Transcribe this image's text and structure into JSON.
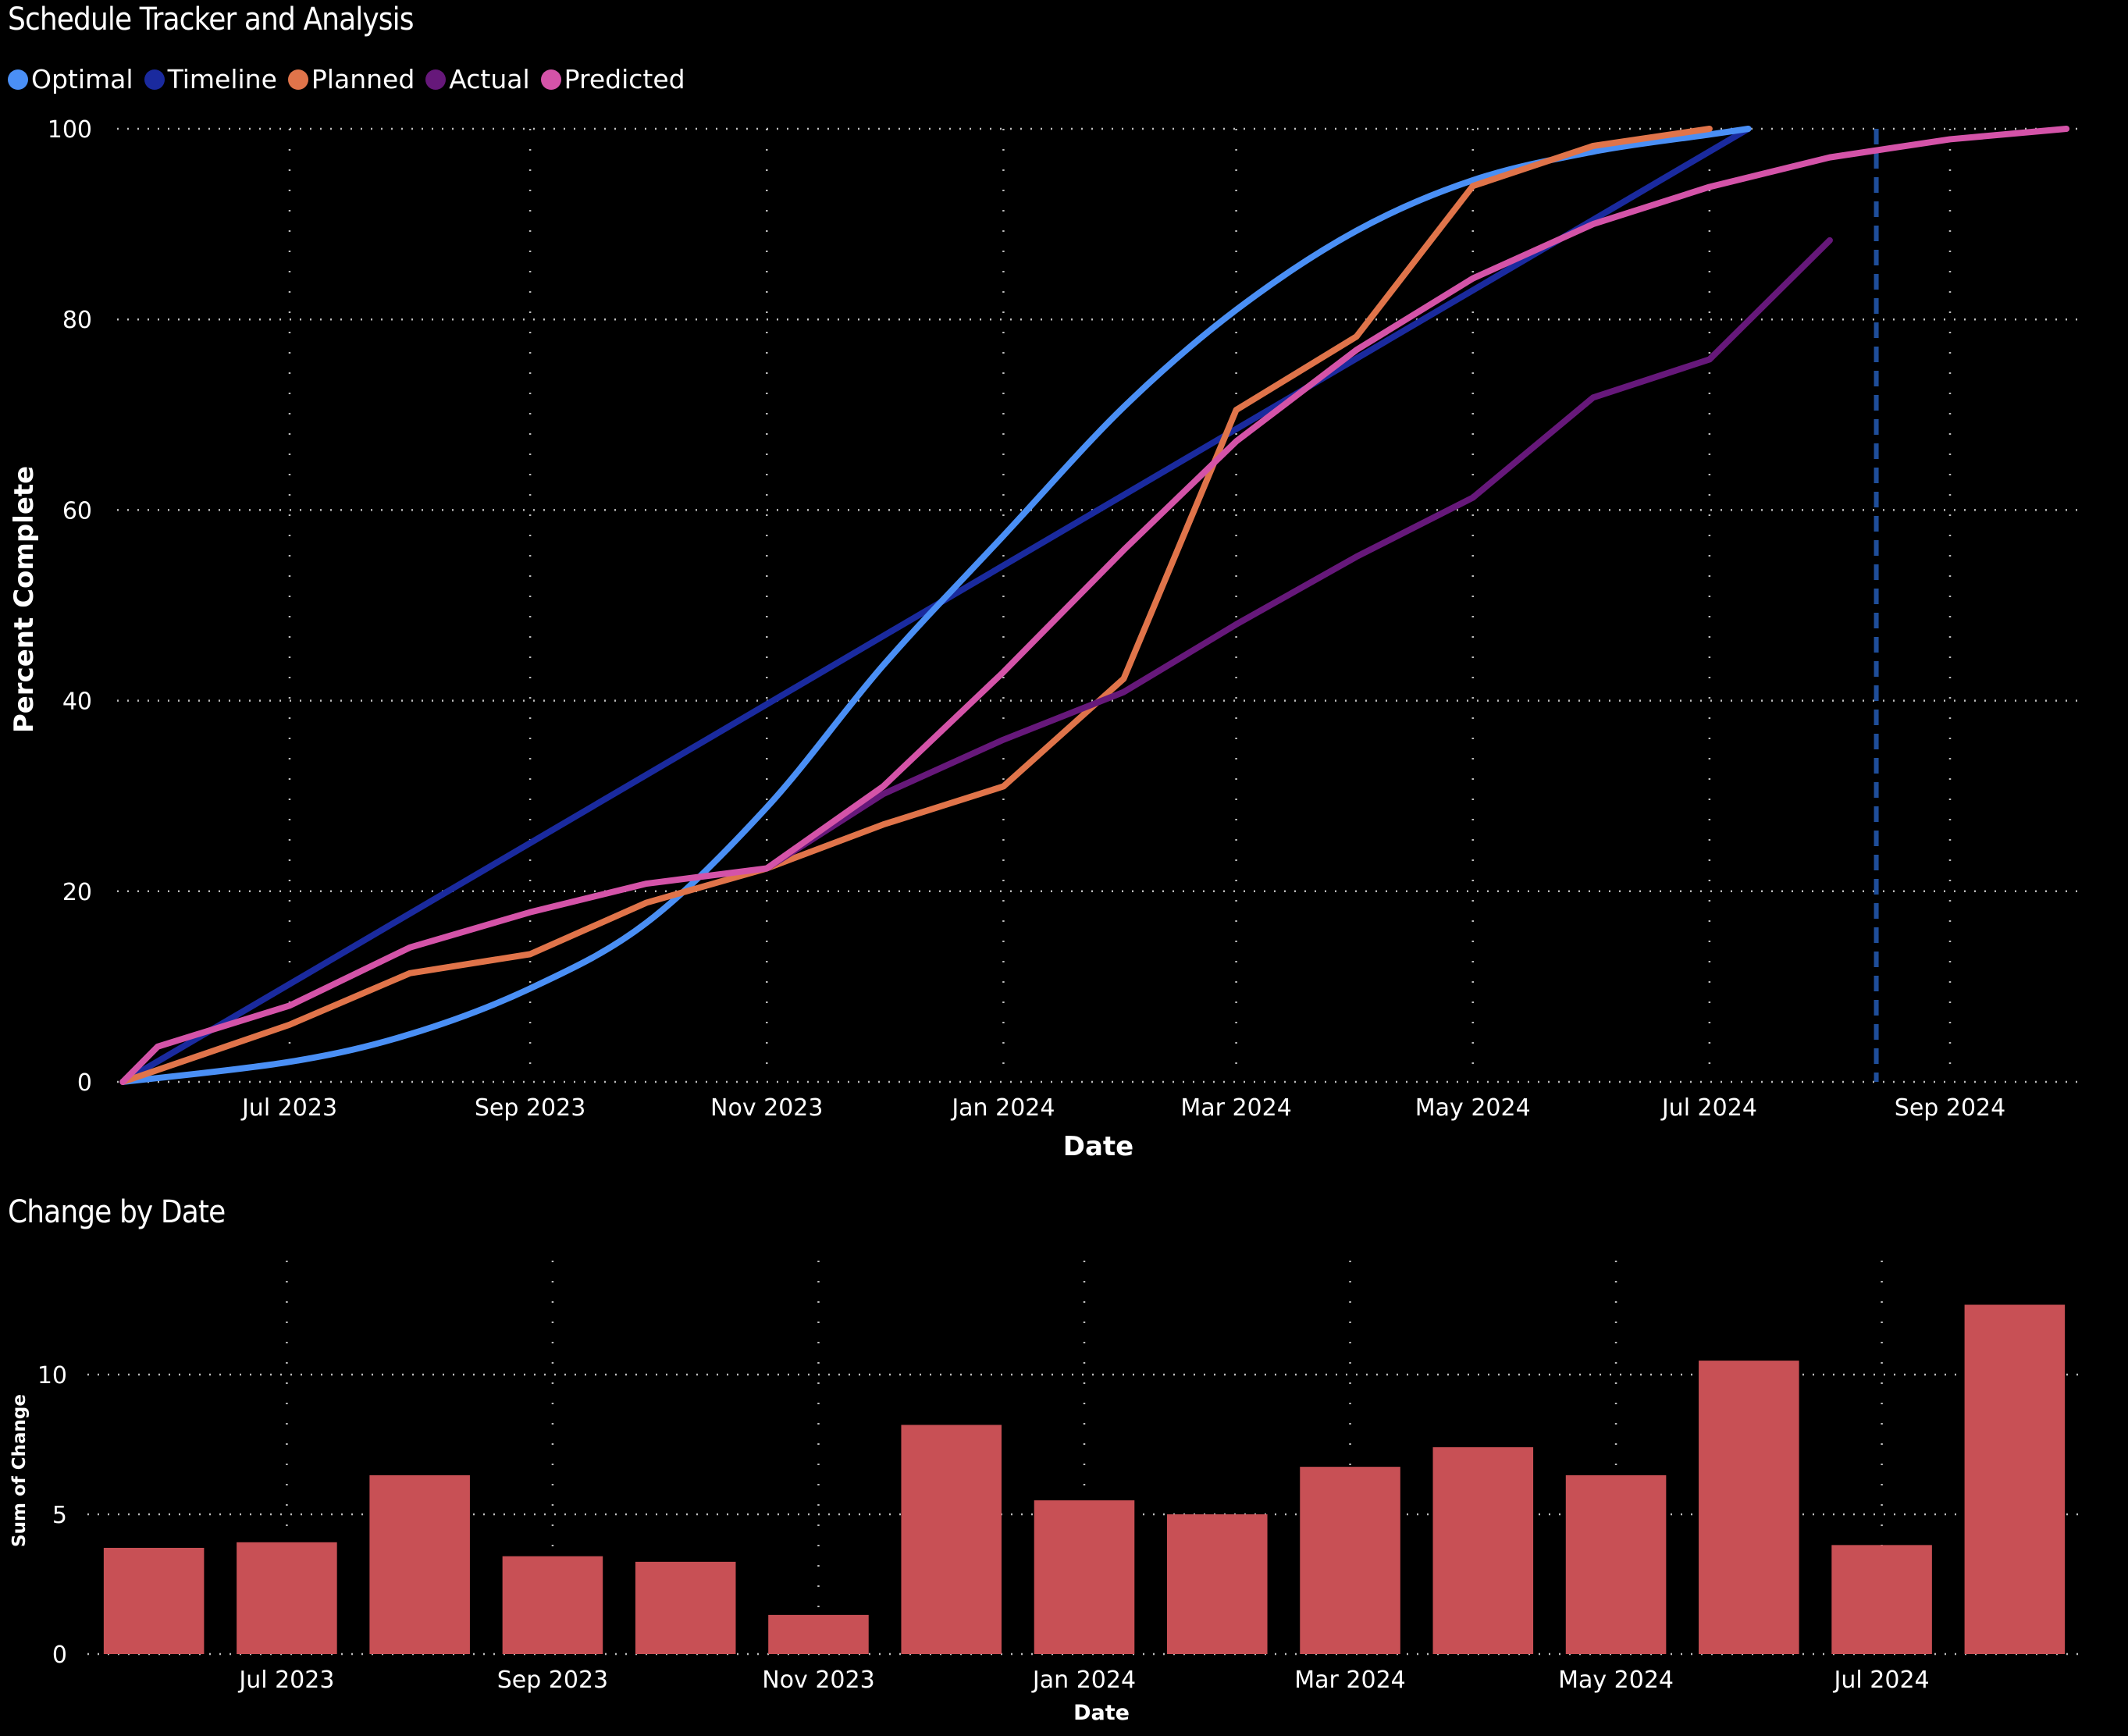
{
  "charts": {
    "tracker": {
      "title": "Schedule Tracker and Analysis",
      "xlabel": "Date",
      "ylabel": "Percent Complete"
    },
    "change": {
      "title": "Change by Date",
      "xlabel": "Date",
      "ylabel": "Sum of Change"
    }
  },
  "chart_data": [
    {
      "type": "line",
      "title": "Schedule Tracker and Analysis",
      "xlabel": "Date",
      "ylabel": "Percent Complete",
      "xlim": [
        "2023-05-19",
        "2024-10-05"
      ],
      "ylim": [
        0,
        100
      ],
      "yticks": [
        0,
        20,
        40,
        60,
        80,
        100
      ],
      "xticks": [
        {
          "date": "2023-07-01",
          "label": "Jul 2023"
        },
        {
          "date": "2023-09-01",
          "label": "Sep 2023"
        },
        {
          "date": "2023-11-01",
          "label": "Nov 2023"
        },
        {
          "date": "2024-01-01",
          "label": "Jan 2024"
        },
        {
          "date": "2024-03-01",
          "label": "Mar 2024"
        },
        {
          "date": "2024-05-01",
          "label": "May 2024"
        },
        {
          "date": "2024-07-01",
          "label": "Jul 2024"
        },
        {
          "date": "2024-09-01",
          "label": "Sep 2024"
        }
      ],
      "grid": true,
      "legend_position": "top-left",
      "reference_line": {
        "date": "2024-08-13",
        "style": "dashed",
        "color": "#1F4E9A"
      },
      "series": [
        {
          "name": "Optimal",
          "color": "#4A8FF5",
          "smooth": true,
          "points": [
            [
              "2023-05-19",
              0
            ],
            [
              "2023-07-01",
              2.1
            ],
            [
              "2023-08-01",
              5.0
            ],
            [
              "2023-09-01",
              9.8
            ],
            [
              "2023-10-01",
              16.7
            ],
            [
              "2023-11-01",
              28.8
            ],
            [
              "2023-12-01",
              43.7
            ],
            [
              "2024-01-01",
              57.3
            ],
            [
              "2024-02-01",
              70.8
            ],
            [
              "2024-03-01",
              81.0
            ],
            [
              "2024-04-01",
              89.3
            ],
            [
              "2024-05-01",
              94.6
            ],
            [
              "2024-06-01",
              97.6
            ],
            [
              "2024-07-01",
              99.4
            ],
            [
              "2024-07-11",
              100
            ]
          ]
        },
        {
          "name": "Timeline",
          "color": "#1A2A9E",
          "smooth": false,
          "points": [
            [
              "2023-05-19",
              0
            ],
            [
              "2024-07-11",
              100
            ]
          ]
        },
        {
          "name": "Planned",
          "color": "#E0744A",
          "smooth": false,
          "points": [
            [
              "2023-05-19",
              0
            ],
            [
              "2023-07-01",
              6.0
            ],
            [
              "2023-08-01",
              11.4
            ],
            [
              "2023-09-01",
              13.4
            ],
            [
              "2023-10-01",
              18.8
            ],
            [
              "2023-11-01",
              22.4
            ],
            [
              "2023-12-01",
              27.0
            ],
            [
              "2024-01-01",
              31.0
            ],
            [
              "2024-02-01",
              42.3
            ],
            [
              "2024-03-01",
              70.5
            ],
            [
              "2024-04-01",
              78.2
            ],
            [
              "2024-05-01",
              94.0
            ],
            [
              "2024-06-01",
              98.2
            ],
            [
              "2024-07-01",
              100
            ]
          ]
        },
        {
          "name": "Actual",
          "color": "#66187A",
          "smooth": false,
          "points": [
            [
              "2023-11-01",
              22.4
            ],
            [
              "2023-12-01",
              30.2
            ],
            [
              "2024-01-01",
              35.9
            ],
            [
              "2024-02-01",
              40.9
            ],
            [
              "2024-03-01",
              48.0
            ],
            [
              "2024-04-01",
              55.1
            ],
            [
              "2024-05-01",
              61.3
            ],
            [
              "2024-06-01",
              71.8
            ],
            [
              "2024-07-01",
              75.8
            ],
            [
              "2024-08-01",
              88.3
            ]
          ]
        },
        {
          "name": "Predicted",
          "color": "#D453A8",
          "smooth": false,
          "points": [
            [
              "2023-05-19",
              0
            ],
            [
              "2023-05-28",
              3.7
            ],
            [
              "2023-07-01",
              8.0
            ],
            [
              "2023-08-01",
              14.1
            ],
            [
              "2023-09-01",
              17.8
            ],
            [
              "2023-10-01",
              20.8
            ],
            [
              "2023-11-01",
              22.4
            ],
            [
              "2023-12-01",
              31.0
            ],
            [
              "2024-01-01",
              43.0
            ],
            [
              "2024-02-01",
              55.8
            ],
            [
              "2024-03-01",
              67.2
            ],
            [
              "2024-04-01",
              76.8
            ],
            [
              "2024-05-01",
              84.3
            ],
            [
              "2024-06-01",
              90.0
            ],
            [
              "2024-07-01",
              93.9
            ],
            [
              "2024-08-01",
              97.0
            ],
            [
              "2024-09-01",
              98.9
            ],
            [
              "2024-10-01",
              100
            ]
          ]
        }
      ]
    },
    {
      "type": "bar",
      "title": "Change by Date",
      "xlabel": "Date",
      "ylabel": "Sum of Change",
      "ylim": [
        0,
        13.5
      ],
      "yticks": [
        0,
        5,
        10
      ],
      "grid": true,
      "color": "#C85055",
      "categories": [
        "Jun 2023",
        "Jul 2023",
        "Aug 2023",
        "Sep 2023",
        "Oct 2023",
        "Nov 2023",
        "Dec 2023",
        "Jan 2024",
        "Feb 2024",
        "Mar 2024",
        "Apr 2024",
        "May 2024",
        "Jun 2024",
        "Jul 2024",
        "Aug 2024"
      ],
      "values": [
        3.8,
        4.0,
        6.4,
        3.5,
        3.3,
        1.4,
        8.2,
        5.5,
        5.0,
        6.7,
        7.4,
        6.4,
        10.5,
        3.9,
        12.5
      ],
      "xtick_labels": [
        {
          "index": 1,
          "label": "Jul 2023"
        },
        {
          "index": 3,
          "label": "Sep 2023"
        },
        {
          "index": 5,
          "label": "Nov 2023"
        },
        {
          "index": 7,
          "label": "Jan 2024"
        },
        {
          "index": 9,
          "label": "Mar 2024"
        },
        {
          "index": 11,
          "label": "May 2024"
        },
        {
          "index": 13,
          "label": "Jul 2024"
        }
      ]
    }
  ]
}
